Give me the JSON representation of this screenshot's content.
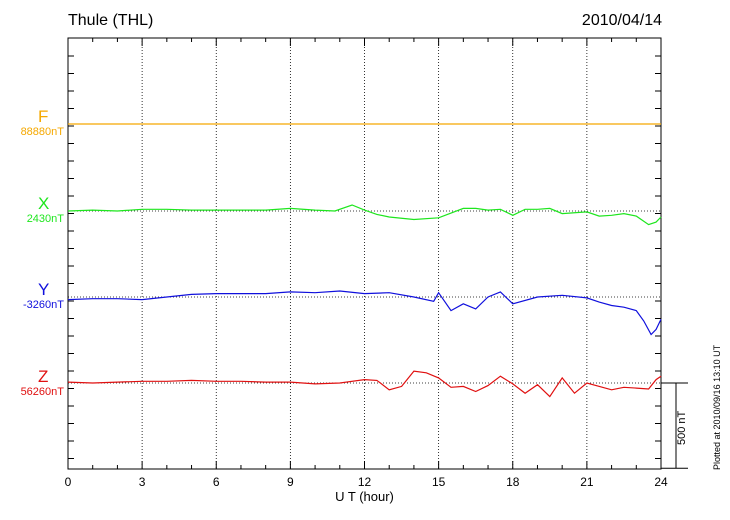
{
  "header": {
    "station": "Thule (THL)",
    "date": "2010/04/14"
  },
  "footer_note": "Plotted at 2010/09/16 13:10 UT",
  "scale_bar_label": "500 nT",
  "chart_data": {
    "type": "line",
    "title": "Thule (THL)",
    "xlabel": "U T (hour)",
    "ylabel": "",
    "xlim": [
      0,
      24
    ],
    "xticks": [
      0,
      3,
      6,
      9,
      12,
      15,
      18,
      21,
      24
    ],
    "grid": "dotted vertical at every 3 hours",
    "scale_bar_nT": 500,
    "series": [
      {
        "name": "F",
        "baseline_label": "88880nT",
        "color": "#f5a800",
        "x": [
          0,
          24
        ],
        "y": [
          0,
          0
        ]
      },
      {
        "name": "X",
        "baseline_label": "2430nT",
        "color": "#1ee61e",
        "x": [
          0,
          1,
          2,
          3,
          4,
          5,
          6,
          7,
          8,
          9,
          10,
          10.8,
          11.5,
          12,
          12.5,
          13,
          14,
          15,
          16,
          16.5,
          17,
          17.5,
          18,
          18.5,
          19,
          19.5,
          20,
          21,
          21.5,
          22,
          22.5,
          23,
          23.5,
          23.8,
          24
        ],
        "y": [
          0,
          5,
          0,
          10,
          10,
          5,
          5,
          5,
          5,
          15,
          5,
          0,
          35,
          5,
          -20,
          -35,
          -50,
          -40,
          15,
          15,
          5,
          10,
          -25,
          10,
          10,
          15,
          -15,
          -5,
          -30,
          -25,
          -15,
          -30,
          -80,
          -65,
          -35
        ]
      },
      {
        "name": "Y",
        "baseline_label": "-3260nT",
        "color": "#1010dd",
        "x": [
          0,
          1,
          2,
          3,
          4,
          5,
          6,
          7,
          8,
          9,
          10,
          11,
          12,
          13,
          14,
          14.8,
          15,
          15.5,
          16,
          16.5,
          17,
          17.5,
          18,
          19,
          20,
          21,
          21.5,
          22,
          22.5,
          23,
          23.3,
          23.6,
          23.8,
          24
        ],
        "y": [
          -15,
          -10,
          -10,
          -15,
          0,
          15,
          20,
          20,
          20,
          30,
          25,
          35,
          20,
          25,
          0,
          -25,
          25,
          -80,
          -40,
          -70,
          0,
          30,
          -40,
          0,
          10,
          -5,
          -30,
          -50,
          -60,
          -80,
          -140,
          -220,
          -190,
          -130
        ]
      },
      {
        "name": "Z",
        "baseline_label": "56260nT",
        "color": "#e01010",
        "x": [
          0,
          1,
          2,
          3,
          4,
          5,
          6,
          7,
          8,
          9,
          10,
          11,
          12,
          12.5,
          13,
          13.5,
          14,
          14.5,
          15,
          15.5,
          16,
          16.5,
          17,
          17.5,
          18,
          18.5,
          19,
          19.5,
          20,
          20.5,
          21,
          22,
          22.5,
          23,
          23.5,
          23.8,
          24
        ],
        "y": [
          5,
          0,
          5,
          10,
          10,
          15,
          10,
          10,
          5,
          5,
          -5,
          0,
          20,
          15,
          -40,
          -20,
          70,
          60,
          30,
          -25,
          -20,
          -50,
          -15,
          40,
          -5,
          -60,
          -10,
          -80,
          30,
          -60,
          0,
          -40,
          -25,
          -30,
          -35,
          20,
          40
        ]
      }
    ]
  }
}
